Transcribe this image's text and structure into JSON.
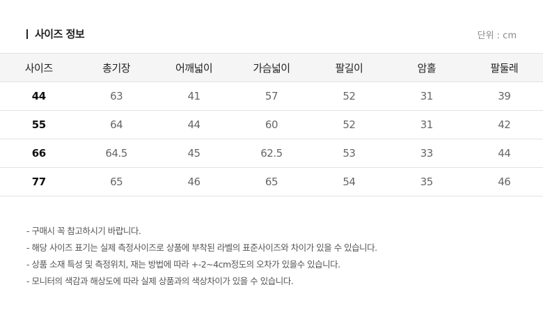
{
  "title": "사이즈 정보",
  "unit": "단위 : cm",
  "table": {
    "headers": [
      "사이즈",
      "총기장",
      "어깨넓이",
      "가슴넓이",
      "팔길이",
      "암홀",
      "팔둘레"
    ],
    "rows": [
      [
        "44",
        "63",
        "41",
        "57",
        "52",
        "31",
        "39"
      ],
      [
        "55",
        "64",
        "44",
        "60",
        "52",
        "31",
        "42"
      ],
      [
        "66",
        "64.5",
        "45",
        "62.5",
        "53",
        "33",
        "44"
      ],
      [
        "77",
        "65",
        "46",
        "65",
        "54",
        "35",
        "46"
      ]
    ]
  },
  "notes": [
    "- 구매시 꼭 참고하시기 바랍니다.",
    "- 해당 사이즈 표기는 실제 측정사이즈로 상품에 부착된 라벨의 표준사이즈와 차이가 있을 수 있습니다.",
    "- 상품 소재 특성 및 측정위치, 재는 방법에 따라 +-2~4cm정도의 오차가 있을수 있습니다.",
    "- 모니터의 색감과 해상도에 따라 실제 상품과의 색상차이가 있을 수 있습니다."
  ]
}
